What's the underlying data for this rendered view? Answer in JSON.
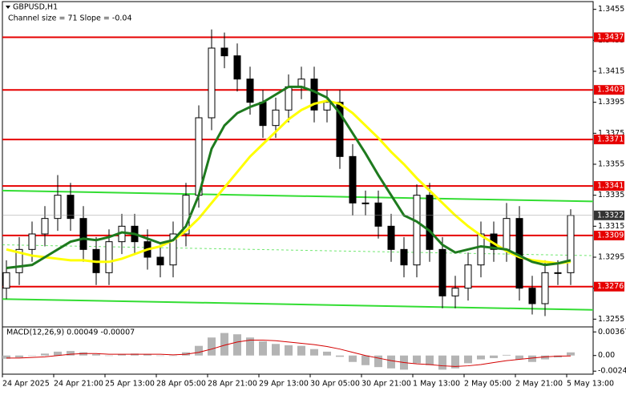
{
  "chart_data": {
    "type": "candlestick",
    "title": "GBPUSD,H1",
    "subtitle": "Channel size = 71 Slope = -0.04",
    "categories": [
      "24 Apr 2025",
      null,
      null,
      null,
      "24 Apr 21:00",
      null,
      null,
      null,
      "25 Apr 13:00",
      null,
      null,
      null,
      "28 Apr 05:00",
      null,
      null,
      null,
      "28 Apr 21:00",
      null,
      null,
      null,
      "29 Apr 13:00",
      null,
      null,
      null,
      "30 Apr 05:00",
      null,
      null,
      null,
      "30 Apr 21:00",
      null,
      null,
      null,
      "1 May 13:00",
      null,
      null,
      null,
      "2 May 05:00",
      null,
      null,
      null,
      "2 May 21:00",
      null,
      null,
      null,
      "5 May 13:00"
    ],
    "open": [
      1.3275,
      1.3285,
      1.33,
      1.331,
      1.332,
      1.3335,
      1.332,
      1.33,
      1.3285,
      1.3305,
      1.3315,
      1.3305,
      1.3295,
      1.329,
      1.331,
      1.3335,
      1.3385,
      1.343,
      1.3425,
      1.341,
      1.3395,
      1.338,
      1.339,
      1.3405,
      1.341,
      1.339,
      1.3395,
      1.336,
      1.333,
      1.333,
      1.3315,
      1.33,
      1.329,
      1.3335,
      1.33,
      1.327,
      1.3275,
      1.329,
      1.331,
      1.33,
      1.332,
      1.3275,
      1.3265,
      1.3285,
      1.3285
    ],
    "high": [
      1.3293,
      1.3308,
      1.3318,
      1.3328,
      1.3348,
      1.3343,
      1.3328,
      1.3308,
      1.3313,
      1.3323,
      1.3323,
      1.3313,
      1.3303,
      1.3318,
      1.3343,
      1.3393,
      1.3442,
      1.344,
      1.3433,
      1.3418,
      1.3403,
      1.3398,
      1.3413,
      1.3418,
      1.3418,
      1.3403,
      1.3403,
      1.3368,
      1.3338,
      1.3338,
      1.3323,
      1.3308,
      1.3342,
      1.3343,
      1.3308,
      1.3283,
      1.3298,
      1.3318,
      1.3318,
      1.333,
      1.3328,
      1.3283,
      1.3293,
      1.3293,
      1.3326
    ],
    "low": [
      1.3268,
      1.3277,
      1.3292,
      1.3302,
      1.3312,
      1.3312,
      1.3292,
      1.3277,
      1.3277,
      1.3297,
      1.3297,
      1.3287,
      1.3282,
      1.3282,
      1.3302,
      1.3327,
      1.3377,
      1.3417,
      1.3402,
      1.3387,
      1.3372,
      1.3372,
      1.3382,
      1.3397,
      1.3382,
      1.3382,
      1.3352,
      1.3322,
      1.3322,
      1.3307,
      1.3292,
      1.3282,
      1.3282,
      1.3292,
      1.3262,
      1.3262,
      1.3267,
      1.3282,
      1.3292,
      1.3292,
      1.3267,
      1.3258,
      1.3257,
      1.3277,
      1.3277
    ],
    "close": [
      1.3285,
      1.33,
      1.331,
      1.332,
      1.3335,
      1.332,
      1.33,
      1.3285,
      1.3305,
      1.3315,
      1.3305,
      1.3295,
      1.329,
      1.331,
      1.3335,
      1.3385,
      1.343,
      1.3425,
      1.341,
      1.3395,
      1.338,
      1.339,
      1.3405,
      1.341,
      1.339,
      1.3395,
      1.336,
      1.333,
      1.333,
      1.3315,
      1.33,
      1.329,
      1.3335,
      1.33,
      1.327,
      1.3275,
      1.329,
      1.331,
      1.33,
      1.332,
      1.3275,
      1.3265,
      1.3285,
      1.3285,
      1.3322
    ],
    "series": [
      {
        "color": "#ffff00",
        "values": [
          1.33,
          1.3298,
          1.3296,
          1.3295,
          1.3294,
          1.3293,
          1.3293,
          1.3292,
          1.3292,
          1.3294,
          1.3297,
          1.33,
          1.3302,
          1.3306,
          1.3312,
          1.332,
          1.333,
          1.334,
          1.335,
          1.336,
          1.3368,
          1.3376,
          1.3384,
          1.339,
          1.3394,
          1.3396,
          1.3394,
          1.3388,
          1.338,
          1.3372,
          1.3363,
          1.3355,
          1.3346,
          1.3338,
          1.333,
          1.3322,
          1.3315,
          1.3309,
          1.3304,
          1.3299,
          1.3295,
          1.3293,
          1.3292,
          1.3291,
          1.3292
        ]
      },
      {
        "color": "#1e7a1e",
        "values": [
          1.3288,
          1.3289,
          1.329,
          1.3295,
          1.33,
          1.3305,
          1.3307,
          1.3306,
          1.3308,
          1.3311,
          1.331,
          1.3307,
          1.3304,
          1.3306,
          1.3315,
          1.3335,
          1.3365,
          1.338,
          1.3388,
          1.3392,
          1.3395,
          1.34,
          1.3405,
          1.3405,
          1.3402,
          1.3398,
          1.3388,
          1.3375,
          1.3362,
          1.3348,
          1.3335,
          1.3322,
          1.3318,
          1.3312,
          1.3303,
          1.3298,
          1.33,
          1.3302,
          1.3301,
          1.33,
          1.3296,
          1.3292,
          1.329,
          1.3291,
          1.3293
        ]
      }
    ],
    "channel": {
      "color": "#33dd33",
      "upper": [
        1.3338,
        1.3331
      ],
      "middle": [
        1.3303,
        1.3296
      ],
      "lower": [
        1.3268,
        1.3261
      ]
    },
    "levels": [
      1.3437,
      1.3403,
      1.3371,
      1.3341,
      1.3309,
      1.3276
    ],
    "level_color": "#e60000",
    "current_price": 1.3322,
    "ylim": [
      1.325,
      1.346
    ],
    "yticks": [
      1.3255,
      1.3275,
      1.3295,
      1.3315,
      1.3335,
      1.3355,
      1.3375,
      1.3395,
      1.3415,
      1.3435,
      1.3455
    ],
    "macd": {
      "title": "MACD(12,26,9) 0.00049 -0.00007",
      "histogram": [
        -0.0005,
        -0.0003,
        0,
        0.0003,
        0.0006,
        0.0007,
        0.0005,
        0.0002,
        0,
        0.0002,
        0.0003,
        0.0002,
        0,
        0,
        0.0005,
        0.0015,
        0.0028,
        0.0035,
        0.0033,
        0.0028,
        0.0022,
        0.0018,
        0.0016,
        0.0015,
        0.001,
        0.0006,
        -0.0002,
        -0.001,
        -0.0015,
        -0.0018,
        -0.002,
        -0.0022,
        -0.0012,
        -0.0015,
        -0.0022,
        -0.002,
        -0.0012,
        -0.0006,
        -0.0004,
        0.0001,
        -0.0006,
        -0.001,
        -0.0006,
        -0.0003,
        0.00049
      ],
      "signal": [
        -0.0004,
        -0.0004,
        -0.0003,
        -0.0002,
        0,
        0.0002,
        0.0003,
        0.0003,
        0.0002,
        0.0002,
        0.0002,
        0.0002,
        0.0002,
        0.0001,
        0.0002,
        0.0005,
        0.001,
        0.0016,
        0.0021,
        0.0024,
        0.0024,
        0.0023,
        0.0021,
        0.0019,
        0.0017,
        0.0014,
        0.001,
        0.0005,
        0,
        -0.0004,
        -0.0008,
        -0.0011,
        -0.0013,
        -0.0014,
        -0.0016,
        -0.0017,
        -0.0016,
        -0.0014,
        -0.0011,
        -0.0008,
        -0.0006,
        -0.0004,
        -0.0002,
        -0.0001,
        -7e-05
      ],
      "histogram_color": "#b4b4b4",
      "signal_color": "#d40000",
      "ylim": [
        -0.0029,
        0.0042
      ],
      "yticks": [
        0.00367,
        {
          "value": 0,
          "label": "0.00"
        },
        -0.00243
      ]
    }
  }
}
